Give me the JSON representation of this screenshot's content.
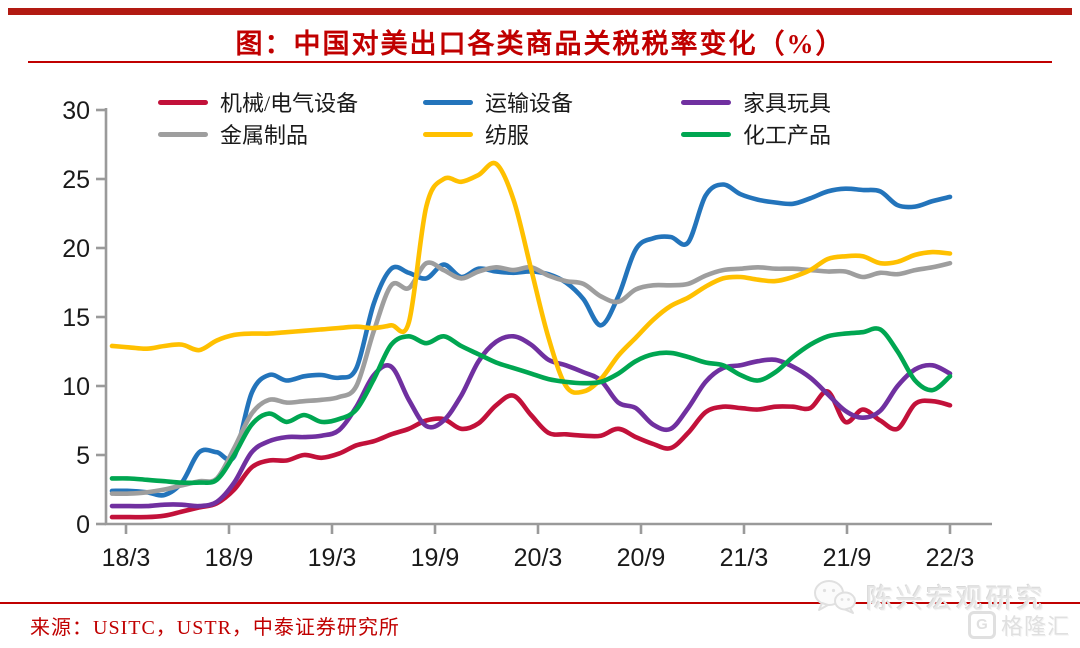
{
  "header": {
    "title": "图：中国对美出口各类商品关税税率变化（%）"
  },
  "footer": {
    "source": "来源：USITC，USTR，中泰证券研究所",
    "watermark": "陈兴宏观研究",
    "logo_text": "格隆汇"
  },
  "colors": {
    "accent_red": "#C00000",
    "top_bar": "#B21A12",
    "axis_gray": "#9a9a9a",
    "tick_text": "#1a1a1a",
    "watermark_gray": "#E0E0E0"
  },
  "chart_data": {
    "type": "line",
    "title": "中国对美出口各类商品关税税率变化（%）",
    "xlabel": "",
    "ylabel": "",
    "x_unit": "year/month (monthly, 2018/3 - 2022/3)",
    "x_tick_labels": [
      "18/3",
      "18/9",
      "19/3",
      "19/9",
      "20/3",
      "20/9",
      "21/3",
      "21/9",
      "22/3"
    ],
    "y_ticks": [
      0,
      5,
      10,
      15,
      20,
      25,
      30
    ],
    "ylim": [
      0,
      30
    ],
    "grid": false,
    "legend_position": "top",
    "series": [
      {
        "name": "机械/电气设备",
        "color": "#C2113A",
        "values": [
          0.5,
          0.5,
          0.5,
          0.6,
          0.9,
          1.2,
          1.5,
          2.5,
          4.1,
          4.6,
          4.6,
          5.0,
          4.8,
          5.1,
          5.7,
          6.0,
          6.5,
          6.9,
          7.5,
          7.6,
          6.9,
          7.3,
          8.6,
          9.3,
          7.9,
          6.6,
          6.5,
          6.4,
          6.4,
          6.9,
          6.3,
          5.8,
          5.5,
          6.6,
          8.1,
          8.5,
          8.4,
          8.3,
          8.5,
          8.5,
          8.4,
          9.6,
          7.4,
          8.3,
          7.5,
          6.9,
          8.7,
          8.9,
          8.6
        ]
      },
      {
        "name": "运输设备",
        "color": "#2374BB",
        "values": [
          2.4,
          2.4,
          2.3,
          2.1,
          3.0,
          5.2,
          5.2,
          4.9,
          9.5,
          10.8,
          10.4,
          10.7,
          10.8,
          10.6,
          11.3,
          16.0,
          18.5,
          18.2,
          17.8,
          18.8,
          17.9,
          18.5,
          18.3,
          18.2,
          18.3,
          18.1,
          17.5,
          16.3,
          14.4,
          16.5,
          19.9,
          20.7,
          20.8,
          20.4,
          23.8,
          24.6,
          23.9,
          23.5,
          23.3,
          23.2,
          23.6,
          24.1,
          24.3,
          24.2,
          24.1,
          23.1,
          23.0,
          23.4,
          23.7
        ]
      },
      {
        "name": "家具玩具",
        "color": "#7030A0",
        "values": [
          1.3,
          1.3,
          1.3,
          1.4,
          1.4,
          1.3,
          1.6,
          3.0,
          5.2,
          6.0,
          6.3,
          6.3,
          6.4,
          6.8,
          8.5,
          10.8,
          11.4,
          9.0,
          7.1,
          7.5,
          9.3,
          11.8,
          13.2,
          13.6,
          13.0,
          11.9,
          11.5,
          11.0,
          10.4,
          8.8,
          8.4,
          7.2,
          6.9,
          8.4,
          10.3,
          11.3,
          11.5,
          11.8,
          11.9,
          11.4,
          10.6,
          9.4,
          8.2,
          7.7,
          8.2,
          10.0,
          11.2,
          11.5,
          10.9
        ]
      },
      {
        "name": "金属制品",
        "color": "#9E9E9E",
        "values": [
          2.2,
          2.2,
          2.3,
          2.5,
          2.8,
          3.1,
          3.3,
          5.5,
          8.0,
          9.0,
          8.8,
          8.9,
          9.0,
          9.2,
          10.0,
          14.0,
          17.3,
          17.1,
          18.9,
          18.4,
          17.8,
          18.3,
          18.6,
          18.4,
          18.6,
          18.0,
          17.6,
          17.4,
          16.5,
          16.1,
          17.0,
          17.3,
          17.3,
          17.4,
          18.0,
          18.4,
          18.5,
          18.6,
          18.5,
          18.5,
          18.4,
          18.3,
          18.3,
          17.9,
          18.2,
          18.1,
          18.4,
          18.6,
          18.9
        ]
      },
      {
        "name": "纺服",
        "color": "#FFC000",
        "values": [
          12.9,
          12.8,
          12.7,
          12.9,
          13.0,
          12.6,
          13.3,
          13.7,
          13.8,
          13.8,
          13.9,
          14.0,
          14.1,
          14.2,
          14.3,
          14.2,
          14.4,
          14.6,
          23.0,
          25.0,
          24.8,
          25.3,
          26.1,
          23.5,
          18.5,
          13.5,
          10.0,
          9.6,
          10.5,
          12.2,
          13.5,
          14.8,
          15.8,
          16.4,
          17.2,
          17.8,
          17.9,
          17.7,
          17.6,
          17.9,
          18.4,
          19.2,
          19.4,
          19.4,
          18.9,
          19.0,
          19.5,
          19.7,
          19.6
        ]
      },
      {
        "name": "化工产品",
        "color": "#00A651",
        "values": [
          3.3,
          3.3,
          3.2,
          3.1,
          3.0,
          3.0,
          3.2,
          5.0,
          7.2,
          8.0,
          7.4,
          7.9,
          7.4,
          7.6,
          8.3,
          10.5,
          13.0,
          13.6,
          13.1,
          13.6,
          12.9,
          12.3,
          11.7,
          11.3,
          10.9,
          10.5,
          10.3,
          10.2,
          10.3,
          10.9,
          11.8,
          12.3,
          12.4,
          12.1,
          11.7,
          11.5,
          10.8,
          10.4,
          11.0,
          12.1,
          13.0,
          13.6,
          13.8,
          13.9,
          14.1,
          12.5,
          10.4,
          9.7,
          10.7
        ]
      }
    ]
  }
}
